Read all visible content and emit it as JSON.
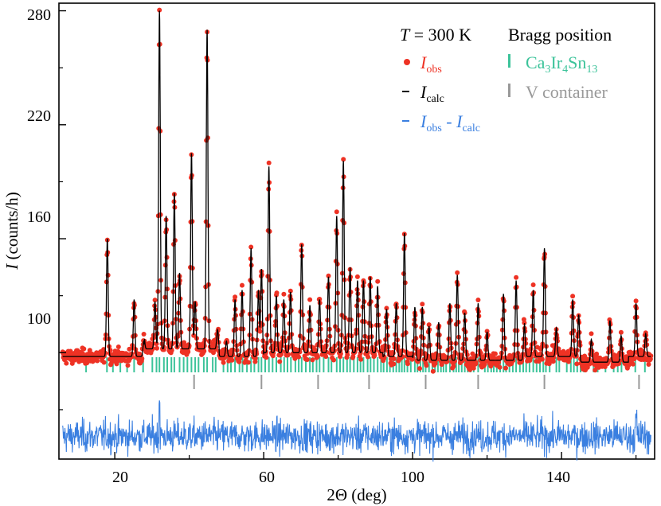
{
  "chart_data": {
    "type": "scatter",
    "title": "",
    "xlabel": "2Θ (deg)",
    "ylabel_italic": "I",
    "ylabel_rest": " (counts/h)",
    "xlim": [
      5,
      165
    ],
    "ylim": [
      44,
      284
    ],
    "xticks": [
      20,
      60,
      100,
      140
    ],
    "yticks": [
      100,
      160,
      220,
      280
    ],
    "xtick_labels": [
      "20",
      "60",
      "100",
      "140"
    ],
    "ytick_labels": [
      "100",
      "160",
      "220",
      "280"
    ],
    "temperature_label_italic": "T",
    "temperature_label_rest": " = 300 K",
    "bragg_header": "Bragg position",
    "legend": [
      {
        "key": "obs",
        "main": "I",
        "sub": "obs",
        "color": "#ee3224",
        "marker": "dot"
      },
      {
        "key": "calc",
        "main": "I",
        "sub": "calc",
        "color": "#000000",
        "marker": "dash"
      },
      {
        "key": "diff",
        "main": "I",
        "sub": "obs",
        "main2": "I",
        "sub2": "calc",
        "joiner": " - ",
        "color": "#3a7fe0",
        "marker": "dash"
      }
    ],
    "bragg_legend": [
      {
        "key": "phase1",
        "parts": [
          [
            "Ca",
            ""
          ],
          [
            "3",
            "sub"
          ],
          [
            "Ir",
            ""
          ],
          [
            "4",
            "sub"
          ],
          [
            "Sn",
            ""
          ],
          [
            "13",
            "sub"
          ]
        ],
        "color": "#3cc39a"
      },
      {
        "key": "phase2",
        "parts": [
          [
            "V container",
            ""
          ]
        ],
        "color": "#999999"
      }
    ],
    "colors": {
      "obs": "#ee3224",
      "calc": "#000000",
      "diff": "#3a7fe0",
      "bragg_phase1": "#3cc39a",
      "bragg_phase2": "#999999"
    },
    "background_level": 98,
    "difference_offset": 56,
    "peaks": [
      {
        "x": 18.0,
        "h": 62
      },
      {
        "x": 25.2,
        "h": 30
      },
      {
        "x": 27.8,
        "h": 8
      },
      {
        "x": 30.8,
        "h": 25
      },
      {
        "x": 32.0,
        "h": 178
      },
      {
        "x": 33.8,
        "h": 70
      },
      {
        "x": 36.0,
        "h": 82
      },
      {
        "x": 37.4,
        "h": 40
      },
      {
        "x": 40.6,
        "h": 103
      },
      {
        "x": 41.6,
        "h": 25
      },
      {
        "x": 44.8,
        "h": 168
      },
      {
        "x": 47.6,
        "h": 10
      },
      {
        "x": 50.0,
        "h": 8
      },
      {
        "x": 52.3,
        "h": 30
      },
      {
        "x": 54.2,
        "h": 35
      },
      {
        "x": 56.6,
        "h": 57
      },
      {
        "x": 58.6,
        "h": 35
      },
      {
        "x": 59.4,
        "h": 46
      },
      {
        "x": 61.4,
        "h": 98
      },
      {
        "x": 63.4,
        "h": 30
      },
      {
        "x": 65.4,
        "h": 28
      },
      {
        "x": 67.2,
        "h": 32
      },
      {
        "x": 70.2,
        "h": 57
      },
      {
        "x": 72.4,
        "h": 25
      },
      {
        "x": 75.0,
        "h": 28
      },
      {
        "x": 77.4,
        "h": 40
      },
      {
        "x": 79.6,
        "h": 72
      },
      {
        "x": 81.4,
        "h": 101
      },
      {
        "x": 83.2,
        "h": 45
      },
      {
        "x": 85.2,
        "h": 38
      },
      {
        "x": 86.8,
        "h": 38
      },
      {
        "x": 88.6,
        "h": 40
      },
      {
        "x": 90.6,
        "h": 35
      },
      {
        "x": 93.0,
        "h": 25
      },
      {
        "x": 95.6,
        "h": 28
      },
      {
        "x": 97.8,
        "h": 65
      },
      {
        "x": 100.6,
        "h": 28
      },
      {
        "x": 102.6,
        "h": 28
      },
      {
        "x": 104.4,
        "h": 18
      },
      {
        "x": 107.0,
        "h": 20
      },
      {
        "x": 110.0,
        "h": 30
      },
      {
        "x": 112.0,
        "h": 45
      },
      {
        "x": 114.0,
        "h": 25
      },
      {
        "x": 117.6,
        "h": 30
      },
      {
        "x": 120.0,
        "h": 15
      },
      {
        "x": 124.4,
        "h": 35
      },
      {
        "x": 127.8,
        "h": 42
      },
      {
        "x": 130.0,
        "h": 18
      },
      {
        "x": 132.4,
        "h": 35
      },
      {
        "x": 135.4,
        "h": 57
      },
      {
        "x": 138.6,
        "h": 15
      },
      {
        "x": 143.0,
        "h": 30
      },
      {
        "x": 144.6,
        "h": 22
      },
      {
        "x": 148.0,
        "h": 12
      },
      {
        "x": 153.0,
        "h": 22
      },
      {
        "x": 156.0,
        "h": 14
      },
      {
        "x": 160.0,
        "h": 28
      },
      {
        "x": 162.6,
        "h": 12
      }
    ],
    "bragg_positions_phase1": [
      12.3,
      17.9,
      19.5,
      21.5,
      23.3,
      25.2,
      27.6,
      30.1,
      31.2,
      32.0,
      33.2,
      34.1,
      35.2,
      36.0,
      37.4,
      38.5,
      39.5,
      40.6,
      41.6,
      42.5,
      43.9,
      44.8,
      46.3,
      47.1,
      49.2,
      50.3,
      51.2,
      52.3,
      53.5,
      54.3,
      55.5,
      56.6,
      57.5,
      58.6,
      59.4,
      60.4,
      61.4,
      62.4,
      63.4,
      64.6,
      65.5,
      66.4,
      67.3,
      68.5,
      69.4,
      70.2,
      71.3,
      72.4,
      73.2,
      74.2,
      75.0,
      76.1,
      77.4,
      78.2,
      79.6,
      80.5,
      81.4,
      82.4,
      83.2,
      84.2,
      85.2,
      86.0,
      86.8,
      87.9,
      88.7,
      89.6,
      90.6,
      91.5,
      92.2,
      93.1,
      93.9,
      94.8,
      95.6,
      96.4,
      97.1,
      97.8,
      98.6,
      99.5,
      100.6,
      101.3,
      102.1,
      102.8,
      103.5,
      104.4,
      105.3,
      106.0,
      106.8,
      107.6,
      108.3,
      109.0,
      110.0,
      111.0,
      111.7,
      112.4,
      113.2,
      114.0,
      114.8,
      115.6,
      116.4,
      117.6,
      119.4,
      120.2,
      121.1,
      121.8,
      122.6,
      123.5,
      124.4,
      125.1,
      126.0,
      126.9,
      127.8,
      128.8,
      129.7,
      130.5,
      131.4,
      132.4,
      133.3,
      134.2,
      135.1,
      135.8,
      136.8,
      138.6,
      139.4,
      141.4,
      142.5,
      143.3,
      144.2,
      145.1,
      146.0,
      148.6,
      149.7,
      151.8,
      154.0,
      155.1,
      156.1,
      159.8,
      162.4
    ],
    "bragg_positions_phase2": [
      41.3,
      59.4,
      74.6,
      88.3,
      103.5,
      117.6,
      135.4,
      160.8
    ]
  }
}
